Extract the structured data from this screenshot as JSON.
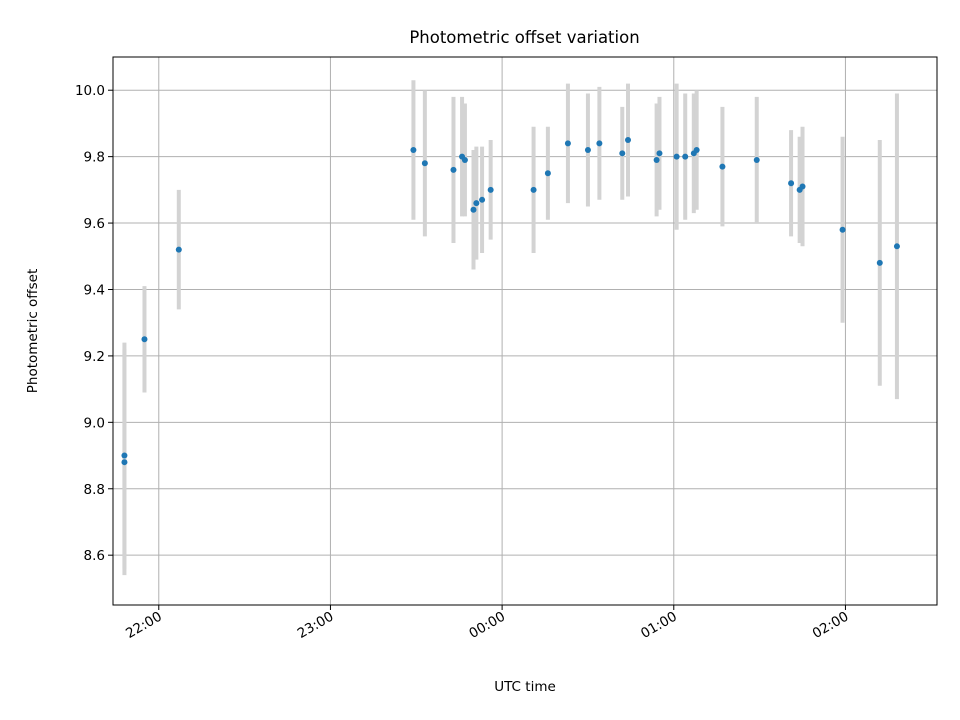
{
  "chart_data": {
    "type": "scatter",
    "title": "Photometric offset variation",
    "xlabel": "UTC time",
    "ylabel": "Photometric offset",
    "x_axis": "time",
    "xlim": [
      "21:44",
      "02:32"
    ],
    "ylim": [
      8.45,
      10.1
    ],
    "grid": true,
    "x_ticks": [
      "22:00",
      "23:00",
      "00:00",
      "01:00",
      "02:00"
    ],
    "y_ticks": [
      8.6,
      8.8,
      9.0,
      9.2,
      9.4,
      9.6,
      9.8,
      10.0
    ],
    "point_color": "#1f77b4",
    "error_bar_color": "#d3d3d3",
    "points": [
      {
        "t": "21:48",
        "y": 8.9,
        "err": 0.34
      },
      {
        "t": "21:48",
        "y": 8.88,
        "err": 0.34
      },
      {
        "t": "21:55",
        "y": 9.25,
        "err": 0.16
      },
      {
        "t": "22:07",
        "y": 9.52,
        "err": 0.18
      },
      {
        "t": "23:29",
        "y": 9.82,
        "err": 0.21
      },
      {
        "t": "23:33",
        "y": 9.78,
        "err": 0.22
      },
      {
        "t": "23:43",
        "y": 9.76,
        "err": 0.22
      },
      {
        "t": "23:46",
        "y": 9.8,
        "err": 0.18
      },
      {
        "t": "23:47",
        "y": 9.79,
        "err": 0.17
      },
      {
        "t": "23:50",
        "y": 9.64,
        "err": 0.18
      },
      {
        "t": "23:51",
        "y": 9.66,
        "err": 0.17
      },
      {
        "t": "23:53",
        "y": 9.67,
        "err": 0.16
      },
      {
        "t": "23:56",
        "y": 9.7,
        "err": 0.15
      },
      {
        "t": "00:11",
        "y": 9.7,
        "err": 0.19
      },
      {
        "t": "00:16",
        "y": 9.75,
        "err": 0.14
      },
      {
        "t": "00:23",
        "y": 9.84,
        "err": 0.18
      },
      {
        "t": "00:30",
        "y": 9.82,
        "err": 0.17
      },
      {
        "t": "00:34",
        "y": 9.84,
        "err": 0.17
      },
      {
        "t": "00:42",
        "y": 9.81,
        "err": 0.14
      },
      {
        "t": "00:44",
        "y": 9.85,
        "err": 0.17
      },
      {
        "t": "00:54",
        "y": 9.79,
        "err": 0.17
      },
      {
        "t": "00:55",
        "y": 9.81,
        "err": 0.17
      },
      {
        "t": "01:01",
        "y": 9.8,
        "err": 0.22
      },
      {
        "t": "01:04",
        "y": 9.8,
        "err": 0.19
      },
      {
        "t": "01:07",
        "y": 9.81,
        "err": 0.18
      },
      {
        "t": "01:08",
        "y": 9.82,
        "err": 0.18
      },
      {
        "t": "01:17",
        "y": 9.77,
        "err": 0.18
      },
      {
        "t": "01:29",
        "y": 9.79,
        "err": 0.19
      },
      {
        "t": "01:41",
        "y": 9.72,
        "err": 0.16
      },
      {
        "t": "01:44",
        "y": 9.7,
        "err": 0.16
      },
      {
        "t": "01:45",
        "y": 9.71,
        "err": 0.18
      },
      {
        "t": "01:59",
        "y": 9.58,
        "err": 0.28
      },
      {
        "t": "02:12",
        "y": 9.48,
        "err": 0.37
      },
      {
        "t": "02:18",
        "y": 9.53,
        "err": 0.46
      }
    ]
  }
}
